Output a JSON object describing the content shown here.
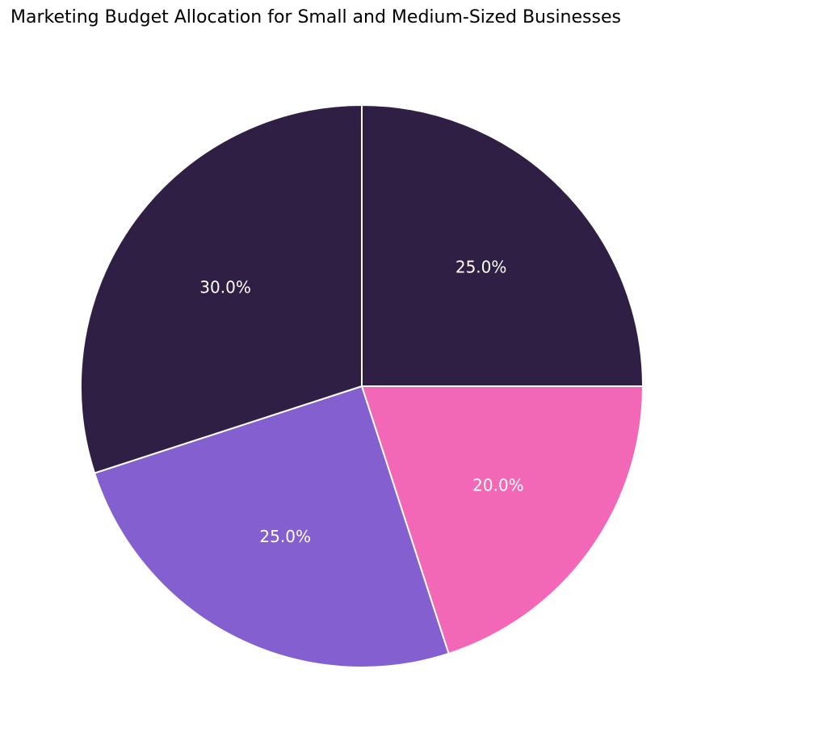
{
  "chart_data": {
    "type": "pie",
    "title": "Marketing Budget Allocation for Small and Medium-Sized Businesses",
    "slices": [
      {
        "value": 25.0,
        "label": "25.0%",
        "color": "#2f1f45"
      },
      {
        "value": 20.0,
        "label": "20.0%",
        "color": "#f368b6"
      },
      {
        "value": 25.0,
        "label": "25.0%",
        "color": "#845fcf"
      },
      {
        "value": 30.0,
        "label": "30.0%",
        "color": "#2f1f45"
      }
    ],
    "start_angle_deg": 90,
    "direction": "clockwise",
    "legend": "none"
  }
}
